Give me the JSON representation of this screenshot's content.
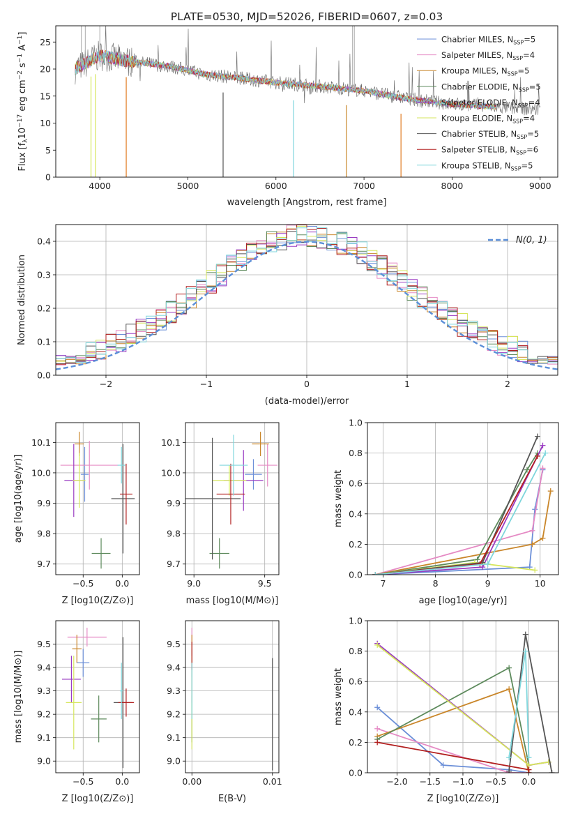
{
  "figure": {
    "title": "PLATE=0530, MJD=52026, FIBERID=0607, z=0.03"
  },
  "styles": {
    "colors": {
      "c1": "#6b8fd8",
      "c2": "#e58ac4",
      "c3": "#c9862a",
      "c4": "#5d8a5c",
      "c5": "#9a3bc2",
      "c6": "#d6e65c",
      "c7": "#555555",
      "c8": "#b21f1f",
      "c9": "#7fd6dc",
      "orange": "#e07a20",
      "dashed": "#5b8fd8",
      "grid": "#b0b0b0"
    }
  },
  "chart_data": [
    {
      "id": "spectrum",
      "type": "line",
      "xlabel": "wavelength [Angstrom, rest frame]",
      "ylabel": "Flux [f",
      "ylabel_parts": [
        "Flux [f",
        "λ",
        "10",
        "−17",
        " erg cm",
        "−2",
        " s",
        "−1",
        " A",
        "−1",
        "]"
      ],
      "xlim": [
        3500,
        9200
      ],
      "ylim": [
        0,
        28
      ],
      "xticks": [
        4000,
        5000,
        6000,
        7000,
        8000,
        9000
      ],
      "yticks": [
        0,
        5,
        10,
        15,
        20,
        25
      ],
      "legend_position": "top-right",
      "series": [
        {
          "name": "Chabrier MILES, N",
          "sub": "SSP",
          "val": "=5",
          "color": "c1"
        },
        {
          "name": "Salpeter MILES, N",
          "sub": "SSP",
          "val": "=4",
          "color": "c2"
        },
        {
          "name": "Kroupa MILES, N",
          "sub": "SSP",
          "val": "=5",
          "color": "c3"
        },
        {
          "name": "Chabrier ELODIE, N",
          "sub": "SSP",
          "val": "=5",
          "color": "c4"
        },
        {
          "name": "Salpeter ELODIE, N",
          "sub": "SSP",
          "val": "=4",
          "color": "c5"
        },
        {
          "name": "Kroupa ELODIE, N",
          "sub": "SSP",
          "val": "=4",
          "color": "c6"
        },
        {
          "name": "Chabrier STELIB, N",
          "sub": "SSP",
          "val": "=5",
          "color": "c7"
        },
        {
          "name": "Salpeter STELIB, N",
          "sub": "SSP",
          "val": "=6",
          "color": "c8"
        },
        {
          "name": "Kroupa STELIB, N",
          "sub": "SSP",
          "val": "=5",
          "color": "c9"
        }
      ],
      "continuum": [
        [
          3720,
          20
        ],
        [
          4000,
          22.5
        ],
        [
          4300,
          21.5
        ],
        [
          4800,
          20.5
        ],
        [
          5200,
          19
        ],
        [
          5500,
          18.5
        ],
        [
          6000,
          17.5
        ],
        [
          6500,
          16.8
        ],
        [
          7000,
          16
        ],
        [
          7500,
          14.5
        ],
        [
          8000,
          13.5
        ],
        [
          8500,
          13
        ],
        [
          9000,
          12.5
        ]
      ],
      "dropouts": [
        [
          3900,
          "c6"
        ],
        [
          3950,
          "c6"
        ],
        [
          4300,
          "orange"
        ],
        [
          5400,
          "c7"
        ],
        [
          6200,
          "c9"
        ],
        [
          6800,
          "c3"
        ],
        [
          7420,
          "orange"
        ]
      ]
    },
    {
      "id": "residuals",
      "type": "line",
      "xlabel": "(data-model)/error",
      "ylabel": "Normed distribution",
      "xlim": [
        -2.5,
        2.5
      ],
      "ylim": [
        0,
        0.45
      ],
      "xticks": [
        -2,
        -1,
        0,
        1,
        2
      ],
      "yticks": [
        0.0,
        0.1,
        0.2,
        0.3,
        0.4
      ],
      "legend_position": "top-right",
      "legend": "N(0, 1)"
    },
    {
      "id": "age_vs_Z",
      "type": "scatter",
      "xlabel": "Z [log10(Z/Z⊙)]",
      "ylabel": "age [log10(age/yr)]",
      "xlim": [
        -0.85,
        0.22
      ],
      "ylim": [
        9.665,
        10.165
      ],
      "xticks": [
        -0.5,
        0.0
      ],
      "yticks": [
        9.7,
        9.8,
        9.9,
        10.0,
        10.1
      ],
      "points": [
        {
          "x": -0.48,
          "y": 9.995,
          "xerr": 0.05,
          "yerr": 0.09,
          "color": "c1"
        },
        {
          "x": -0.42,
          "y": 10.025,
          "xerr": 0.37,
          "yerr": 0.08,
          "color": "c2"
        },
        {
          "x": -0.55,
          "y": 10.095,
          "xerr": 0.06,
          "yerr": 0.04,
          "color": "c3"
        },
        {
          "x": -0.27,
          "y": 9.735,
          "xerr": 0.12,
          "yerr": 0.05,
          "color": "c4"
        },
        {
          "x": -0.62,
          "y": 9.975,
          "xerr": 0.12,
          "yerr": 0.12,
          "color": "c5"
        },
        {
          "x": -0.55,
          "y": 9.975,
          "xerr": 0.08,
          "yerr": 0.09,
          "color": "c6"
        },
        {
          "x": 0.01,
          "y": 9.915,
          "xerr": 0.15,
          "yerr": 0.18,
          "color": "c7"
        },
        {
          "x": 0.05,
          "y": 9.93,
          "xerr": 0.08,
          "yerr": 0.1,
          "color": "c8"
        },
        {
          "x": -0.01,
          "y": 10.025,
          "xerr": 0.05,
          "yerr": 0.06,
          "color": "c9"
        }
      ]
    },
    {
      "id": "age_vs_mass",
      "type": "scatter",
      "xlabel": "mass [log10(M/M⊙)]",
      "ylabel": "",
      "xlim": [
        8.94,
        9.6
      ],
      "ylim": [
        9.665,
        10.165
      ],
      "xticks": [
        9.0,
        9.5
      ],
      "yticks": [
        9.7,
        9.8,
        9.9,
        10.0,
        10.1
      ],
      "points": [
        {
          "x": 9.42,
          "y": 9.995,
          "xerr": 0.06,
          "yerr": 0.05,
          "color": "c1"
        },
        {
          "x": 9.52,
          "y": 10.025,
          "xerr": 0.07,
          "yerr": 0.07,
          "color": "c2"
        },
        {
          "x": 9.47,
          "y": 10.095,
          "xerr": 0.06,
          "yerr": 0.04,
          "color": "c3"
        },
        {
          "x": 9.18,
          "y": 9.735,
          "xerr": 0.07,
          "yerr": 0.05,
          "color": "c4"
        },
        {
          "x": 9.35,
          "y": 9.975,
          "xerr": 0.14,
          "yerr": 0.1,
          "color": "c5"
        },
        {
          "x": 9.25,
          "y": 9.975,
          "xerr": 0.12,
          "yerr": 0.05,
          "color": "c6"
        },
        {
          "x": 9.13,
          "y": 9.915,
          "xerr": 0.2,
          "yerr": 0.2,
          "color": "c7"
        },
        {
          "x": 9.26,
          "y": 9.93,
          "xerr": 0.1,
          "yerr": 0.1,
          "color": "c8"
        },
        {
          "x": 9.28,
          "y": 10.025,
          "xerr": 0.1,
          "yerr": 0.1,
          "color": "c9"
        }
      ]
    },
    {
      "id": "weight_vs_age",
      "type": "line",
      "xlabel": "age [log10(age/yr)]",
      "ylabel": "mass weight",
      "xlim": [
        6.7,
        10.35
      ],
      "ylim": [
        0,
        1.0
      ],
      "xticks": [
        7,
        8,
        9,
        10
      ],
      "yticks": [
        0.0,
        0.2,
        0.4,
        0.6,
        0.8,
        1.0
      ],
      "series": [
        {
          "color": "c1",
          "x": [
            6.85,
            9.8,
            9.9,
            10.05
          ],
          "y": [
            0.0,
            0.05,
            0.43,
            0.69
          ]
        },
        {
          "color": "c2",
          "x": [
            6.85,
            9.85,
            10.05
          ],
          "y": [
            0.0,
            0.29,
            0.7
          ]
        },
        {
          "color": "c3",
          "x": [
            6.85,
            9.85,
            10.05,
            10.2
          ],
          "y": [
            0.0,
            0.2,
            0.24,
            0.55
          ]
        },
        {
          "color": "c4",
          "x": [
            6.85,
            8.8,
            9.75,
            9.95
          ],
          "y": [
            0.0,
            0.1,
            0.69,
            0.8
          ]
        },
        {
          "color": "c5",
          "x": [
            6.85,
            8.9,
            10.05
          ],
          "y": [
            0.0,
            0.05,
            0.85
          ]
        },
        {
          "color": "c6",
          "x": [
            6.85,
            8.75,
            9.9
          ],
          "y": [
            0.0,
            0.08,
            0.03
          ]
        },
        {
          "color": "c7",
          "x": [
            6.85,
            8.9,
            9.95
          ],
          "y": [
            0.0,
            0.08,
            0.91
          ]
        },
        {
          "color": "c8",
          "x": [
            6.85,
            8.85,
            9.95
          ],
          "y": [
            0.0,
            0.07,
            0.78
          ]
        },
        {
          "color": "c9",
          "x": [
            6.85,
            9.0,
            10.1
          ],
          "y": [
            0.0,
            0.07,
            0.8
          ]
        }
      ]
    },
    {
      "id": "mass_vs_Z",
      "type": "scatter",
      "xlabel": "Z [log10(Z/Z⊙)]",
      "ylabel": "mass [log10(M/M⊙)]",
      "xlim": [
        -0.85,
        0.22
      ],
      "ylim": [
        8.95,
        9.6
      ],
      "xticks": [
        -0.5,
        0.0
      ],
      "yticks": [
        9.0,
        9.1,
        9.2,
        9.3,
        9.4,
        9.5
      ],
      "points": [
        {
          "x": -0.5,
          "y": 9.42,
          "xerr": 0.08,
          "yerr": 0.06,
          "color": "c1"
        },
        {
          "x": -0.45,
          "y": 9.53,
          "xerr": 0.25,
          "yerr": 0.04,
          "color": "c2"
        },
        {
          "x": -0.58,
          "y": 9.48,
          "xerr": 0.06,
          "yerr": 0.06,
          "color": "c3"
        },
        {
          "x": -0.3,
          "y": 9.18,
          "xerr": 0.1,
          "yerr": 0.1,
          "color": "c4"
        },
        {
          "x": -0.65,
          "y": 9.35,
          "xerr": 0.12,
          "yerr": 0.1,
          "color": "c5"
        },
        {
          "x": -0.62,
          "y": 9.25,
          "xerr": 0.1,
          "yerr": 0.2,
          "color": "c6"
        },
        {
          "x": 0.01,
          "y": 9.25,
          "xerr": 0.12,
          "yerr": 0.28,
          "color": "c7"
        },
        {
          "x": 0.05,
          "y": 9.25,
          "xerr": 0.1,
          "yerr": 0.06,
          "color": "c8"
        },
        {
          "x": -0.01,
          "y": 9.3,
          "xerr": 0.02,
          "yerr": 0.12,
          "color": "c9"
        }
      ]
    },
    {
      "id": "mass_vs_ebv",
      "type": "scatter",
      "xlabel": "E(B-V)",
      "ylabel": "",
      "xlim": [
        -0.0008,
        0.0108
      ],
      "ylim": [
        8.95,
        9.6
      ],
      "xticks": [
        0.0,
        0.01
      ],
      "xticklabels": [
        "0.00",
        "0.01"
      ],
      "yticks": [
        9.0,
        9.1,
        9.2,
        9.3,
        9.4,
        9.5
      ],
      "points": [
        {
          "x": 0.0,
          "y": 9.42,
          "xerr": 0,
          "yerr": 0.06,
          "color": "c1"
        },
        {
          "x": 0.0,
          "y": 9.53,
          "xerr": 0,
          "yerr": 0.04,
          "color": "c2"
        },
        {
          "x": 0.0,
          "y": 9.48,
          "xerr": 0,
          "yerr": 0.06,
          "color": "c3"
        },
        {
          "x": 0.0,
          "y": 9.18,
          "xerr": 0,
          "yerr": 0.1,
          "color": "c4"
        },
        {
          "x": 0.0,
          "y": 9.35,
          "xerr": 0,
          "yerr": 0.1,
          "color": "c5"
        },
        {
          "x": 0.0,
          "y": 9.25,
          "xerr": 0,
          "yerr": 0.2,
          "color": "c6"
        },
        {
          "x": 0.01,
          "y": 9.2,
          "xerr": 0,
          "yerr": 0.24,
          "color": "c7"
        },
        {
          "x": 0.0,
          "y": 9.45,
          "xerr": 0,
          "yerr": 0.06,
          "color": "c8"
        },
        {
          "x": 0.0,
          "y": 9.3,
          "xerr": 0,
          "yerr": 0.12,
          "color": "c9"
        }
      ]
    },
    {
      "id": "weight_vs_Z",
      "type": "line",
      "xlabel": "Z [log10(Z/Z⊙)]",
      "ylabel": "mass weight",
      "xlim": [
        -2.45,
        0.45
      ],
      "ylim": [
        0,
        1.0
      ],
      "xticks": [
        -2.0,
        -1.5,
        -1.0,
        -0.5,
        0.0
      ],
      "yticks": [
        0.0,
        0.2,
        0.4,
        0.6,
        0.8,
        1.0
      ],
      "series": [
        {
          "color": "c1",
          "x": [
            -2.3,
            -1.3,
            -0.3,
            0.0
          ],
          "y": [
            0.43,
            0.05,
            0.02,
            0.0
          ]
        },
        {
          "color": "c2",
          "x": [
            -2.3,
            -0.3,
            0.0
          ],
          "y": [
            0.29,
            0.0,
            0.0
          ]
        },
        {
          "color": "c3",
          "x": [
            -2.3,
            -0.3,
            0.0
          ],
          "y": [
            0.24,
            0.55,
            0.0
          ]
        },
        {
          "color": "c4",
          "x": [
            -2.3,
            -0.3,
            0.0
          ],
          "y": [
            0.22,
            0.69,
            0.05
          ]
        },
        {
          "color": "c5",
          "x": [
            -2.3,
            0.0,
            0.3
          ],
          "y": [
            0.85,
            0.05,
            0.07
          ]
        },
        {
          "color": "c6",
          "x": [
            -2.3,
            0.0,
            0.3
          ],
          "y": [
            0.84,
            0.05,
            0.07
          ]
        },
        {
          "color": "c7",
          "x": [
            -0.3,
            -0.05,
            0.35
          ],
          "y": [
            0.01,
            0.91,
            0.0
          ]
        },
        {
          "color": "c8",
          "x": [
            -2.3,
            0.0,
            0.0
          ],
          "y": [
            0.2,
            0.02,
            0.0
          ]
        },
        {
          "color": "c9",
          "x": [
            -0.3,
            -0.05,
            0.0
          ],
          "y": [
            0.1,
            0.8,
            0.1
          ]
        }
      ]
    }
  ]
}
